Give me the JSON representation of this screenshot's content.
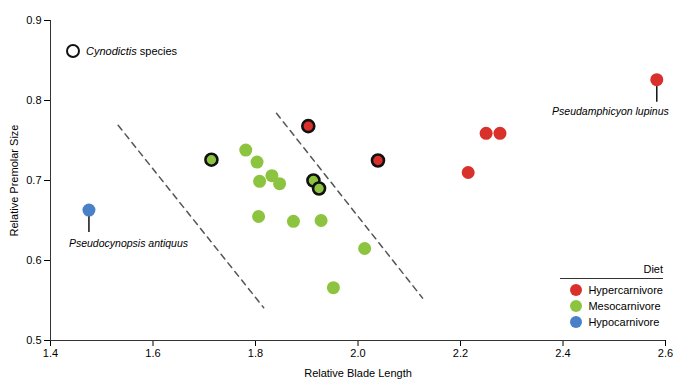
{
  "chart_data": {
    "type": "scatter",
    "xlabel": "Relative Blade Length",
    "ylabel": "Relative Premolar Size",
    "xlim": [
      1.4,
      2.6
    ],
    "ylim": [
      0.5,
      0.9
    ],
    "xticks": [
      1.4,
      1.6,
      1.8,
      {
        "value": 2,
        "label": "2.0"
      },
      2.2,
      2.4,
      2.6
    ],
    "yticks": [
      0.5,
      0.6,
      0.7,
      0.8,
      0.9
    ],
    "legend": "bottom-right",
    "legend_title": "Diet",
    "highlight": {
      "name": "Cynodictis species",
      "marker": "ring"
    },
    "series": [
      {
        "name": "Hypercarnivore",
        "color": "#d9302c",
        "x": [
          1.903,
          2.039,
          2.215,
          2.25,
          2.277,
          2.583
        ],
        "y": [
          0.768,
          0.725,
          0.71,
          0.759,
          0.759,
          0.826
        ],
        "cynodictis": [
          true,
          true,
          false,
          false,
          false,
          false
        ]
      },
      {
        "name": "Mesocarnivore",
        "color": "#8cc43f",
        "x": [
          1.714,
          1.781,
          1.803,
          1.808,
          1.832,
          1.847,
          1.806,
          1.874,
          1.928,
          1.913,
          1.924,
          2.013,
          1.952
        ],
        "y": [
          0.726,
          0.738,
          0.723,
          0.699,
          0.706,
          0.696,
          0.655,
          0.649,
          0.65,
          0.7,
          0.69,
          0.615,
          0.566
        ],
        "cynodictis": [
          true,
          false,
          false,
          false,
          false,
          false,
          false,
          false,
          false,
          true,
          true,
          false,
          false
        ]
      },
      {
        "name": "Hypocarnivore",
        "color": "#4a80c8",
        "x": [
          1.475
        ],
        "y": [
          0.663
        ],
        "cynodictis": [
          false
        ]
      }
    ],
    "annotations": [
      {
        "text": "Pseudamphicyon lupinus",
        "x": 2.583,
        "y": 0.826
      },
      {
        "text": "Pseudocynopsis antiquus",
        "x": 1.475,
        "y": 0.663
      }
    ],
    "lines": [
      {
        "x": [
          1.532,
          1.816
        ],
        "y": [
          0.769,
          0.541
        ],
        "line_style": "dashed"
      },
      {
        "x": [
          1.841,
          2.126
        ],
        "y": [
          0.784,
          0.553
        ],
        "line_style": "dashed"
      }
    ]
  }
}
